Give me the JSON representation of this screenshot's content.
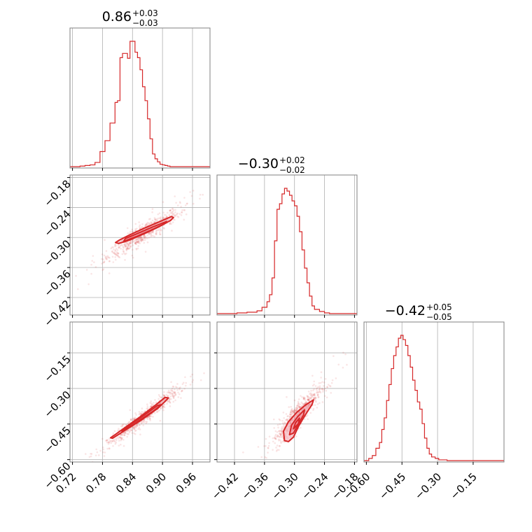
{
  "colors": {
    "series": "#d62728",
    "fill": "#f4a6b0",
    "grid": "#b0b0b0",
    "frame": "#808080"
  },
  "chart_data": {
    "type": "corner",
    "params": [
      "p0",
      "p1",
      "p2"
    ],
    "titles": [
      {
        "value": "0.86",
        "plus": "+0.03",
        "minus": "−0.03"
      },
      {
        "value": "−0.30",
        "plus": "+0.02",
        "minus": "−0.02"
      },
      {
        "value": "−0.42",
        "plus": "+0.05",
        "minus": "−0.05"
      }
    ],
    "ranges": [
      [
        0.715,
        0.995
      ],
      [
        -0.455,
        -0.175
      ],
      [
        -0.61,
        -0.02
      ]
    ],
    "ticks": [
      {
        "values": [
          0.72,
          0.78,
          0.84,
          0.9,
          0.96
        ],
        "labels": [
          "0.72",
          "0.78",
          "0.84",
          "0.90",
          "0.96"
        ]
      },
      {
        "values": [
          -0.42,
          -0.36,
          -0.3,
          -0.24,
          -0.18
        ],
        "labels": [
          "−0.42",
          "−0.36",
          "−0.30",
          "−0.24",
          "−0.18"
        ]
      },
      {
        "values": [
          -0.6,
          -0.45,
          -0.3,
          -0.15
        ],
        "labels": [
          "−0.60",
          "−0.45",
          "−0.30",
          "−0.15"
        ]
      }
    ],
    "marginals": [
      {
        "edges": [
          0.715,
          0.725,
          0.735,
          0.745,
          0.755,
          0.765,
          0.775,
          0.785,
          0.795,
          0.805,
          0.81,
          0.815,
          0.82,
          0.825,
          0.83,
          0.835,
          0.84,
          0.845,
          0.85,
          0.855,
          0.86,
          0.865,
          0.87,
          0.875,
          0.88,
          0.885,
          0.89,
          0.895,
          0.9,
          0.905,
          0.91,
          0.915,
          0.92,
          0.925,
          0.935,
          0.945,
          0.955,
          0.975,
          0.995
        ],
        "counts": [
          1,
          1,
          2,
          3,
          4,
          8,
          26,
          44,
          73,
          107,
          110,
          181,
          188,
          188,
          180,
          208,
          208,
          190,
          181,
          161,
          133,
          110,
          80,
          47,
          22,
          14,
          9,
          5,
          4,
          3,
          2,
          1,
          1,
          1,
          1,
          1,
          1,
          1
        ]
      },
      {
        "edges": [
          -0.455,
          -0.435,
          -0.415,
          -0.395,
          -0.375,
          -0.365,
          -0.355,
          -0.35,
          -0.345,
          -0.34,
          -0.335,
          -0.33,
          -0.325,
          -0.32,
          -0.315,
          -0.31,
          -0.305,
          -0.3,
          -0.295,
          -0.29,
          -0.285,
          -0.28,
          -0.275,
          -0.27,
          -0.265,
          -0.26,
          -0.25,
          -0.24,
          -0.23,
          -0.21,
          -0.175
        ],
        "counts": [
          1,
          1,
          2,
          3,
          5,
          10,
          18,
          28,
          52,
          105,
          150,
          158,
          172,
          180,
          176,
          170,
          162,
          155,
          140,
          118,
          92,
          66,
          45,
          26,
          12,
          7,
          4,
          2,
          1,
          1
        ]
      },
      {
        "edges": [
          -0.61,
          -0.59,
          -0.575,
          -0.56,
          -0.545,
          -0.535,
          -0.525,
          -0.515,
          -0.505,
          -0.495,
          -0.485,
          -0.475,
          -0.465,
          -0.455,
          -0.445,
          -0.435,
          -0.425,
          -0.415,
          -0.405,
          -0.395,
          -0.385,
          -0.375,
          -0.365,
          -0.355,
          -0.345,
          -0.335,
          -0.325,
          -0.31,
          -0.295,
          -0.28,
          -0.26,
          -0.24,
          -0.22,
          -0.2,
          -0.18,
          -0.16,
          -0.14,
          -0.12,
          -0.1,
          -0.08,
          -0.06,
          -0.04,
          -0.02
        ],
        "counts": [
          1,
          4,
          8,
          18,
          26,
          44,
          60,
          84,
          106,
          128,
          146,
          158,
          170,
          174,
          168,
          160,
          146,
          130,
          112,
          98,
          82,
          72,
          52,
          32,
          18,
          10,
          6,
          4,
          2,
          2,
          1,
          1,
          1,
          1,
          1,
          1,
          1,
          1,
          1,
          1,
          1,
          1
        ]
      }
    ],
    "pairs": [
      {
        "row": 1,
        "col": 0,
        "center": [
          0.862,
          -0.292
        ],
        "sd": [
          0.03,
          0.02
        ],
        "rho": 0.93,
        "contours": [
          [
            [
              0.812,
              -0.312
            ],
            [
              0.832,
              -0.306
            ],
            [
              0.862,
              -0.293
            ],
            [
              0.892,
              -0.279
            ],
            [
              0.916,
              -0.266
            ],
            [
              0.922,
              -0.26
            ],
            [
              0.918,
              -0.258
            ],
            [
              0.895,
              -0.268
            ],
            [
              0.862,
              -0.282
            ],
            [
              0.832,
              -0.296
            ],
            [
              0.814,
              -0.305
            ],
            [
              0.806,
              -0.31
            ]
          ],
          [
            [
              0.822,
              -0.308
            ],
            [
              0.848,
              -0.298
            ],
            [
              0.878,
              -0.285
            ],
            [
              0.905,
              -0.272
            ],
            [
              0.908,
              -0.268
            ],
            [
              0.88,
              -0.279
            ],
            [
              0.85,
              -0.292
            ],
            [
              0.826,
              -0.302
            ]
          ]
        ]
      },
      {
        "row": 2,
        "col": 0,
        "center": [
          0.862,
          -0.42
        ],
        "sd": [
          0.03,
          0.05
        ],
        "rho": 0.97,
        "contours": [
          [
            [
              0.8,
              -0.51
            ],
            [
              0.83,
              -0.47
            ],
            [
              0.86,
              -0.43
            ],
            [
              0.89,
              -0.385
            ],
            [
              0.905,
              -0.355
            ],
            [
              0.912,
              -0.34
            ],
            [
              0.905,
              -0.338
            ],
            [
              0.885,
              -0.372
            ],
            [
              0.855,
              -0.42
            ],
            [
              0.825,
              -0.465
            ],
            [
              0.805,
              -0.495
            ],
            [
              0.796,
              -0.508
            ]
          ],
          [
            [
              0.82,
              -0.482
            ],
            [
              0.85,
              -0.44
            ],
            [
              0.88,
              -0.398
            ],
            [
              0.898,
              -0.368
            ],
            [
              0.89,
              -0.372
            ],
            [
              0.862,
              -0.415
            ],
            [
              0.832,
              -0.458
            ],
            [
              0.818,
              -0.478
            ]
          ]
        ]
      },
      {
        "row": 2,
        "col": 1,
        "center": [
          -0.295,
          -0.415
        ],
        "sd": [
          0.02,
          0.05
        ],
        "rho": 0.9,
        "contours": [
          [
            [
              -0.32,
              -0.52
            ],
            [
              -0.322,
              -0.48
            ],
            [
              -0.312,
              -0.44
            ],
            [
              -0.295,
              -0.4
            ],
            [
              -0.278,
              -0.37
            ],
            [
              -0.262,
              -0.348
            ],
            [
              -0.265,
              -0.368
            ],
            [
              -0.278,
              -0.41
            ],
            [
              -0.292,
              -0.46
            ],
            [
              -0.302,
              -0.505
            ],
            [
              -0.312,
              -0.524
            ]
          ],
          [
            [
              -0.31,
              -0.495
            ],
            [
              -0.306,
              -0.455
            ],
            [
              -0.294,
              -0.42
            ],
            [
              -0.28,
              -0.39
            ],
            [
              -0.282,
              -0.412
            ],
            [
              -0.292,
              -0.45
            ],
            [
              -0.302,
              -0.488
            ]
          ],
          [
            [
              -0.302,
              -0.47
            ],
            [
              -0.298,
              -0.445
            ],
            [
              -0.29,
              -0.425
            ],
            [
              -0.292,
              -0.448
            ]
          ]
        ]
      }
    ]
  }
}
